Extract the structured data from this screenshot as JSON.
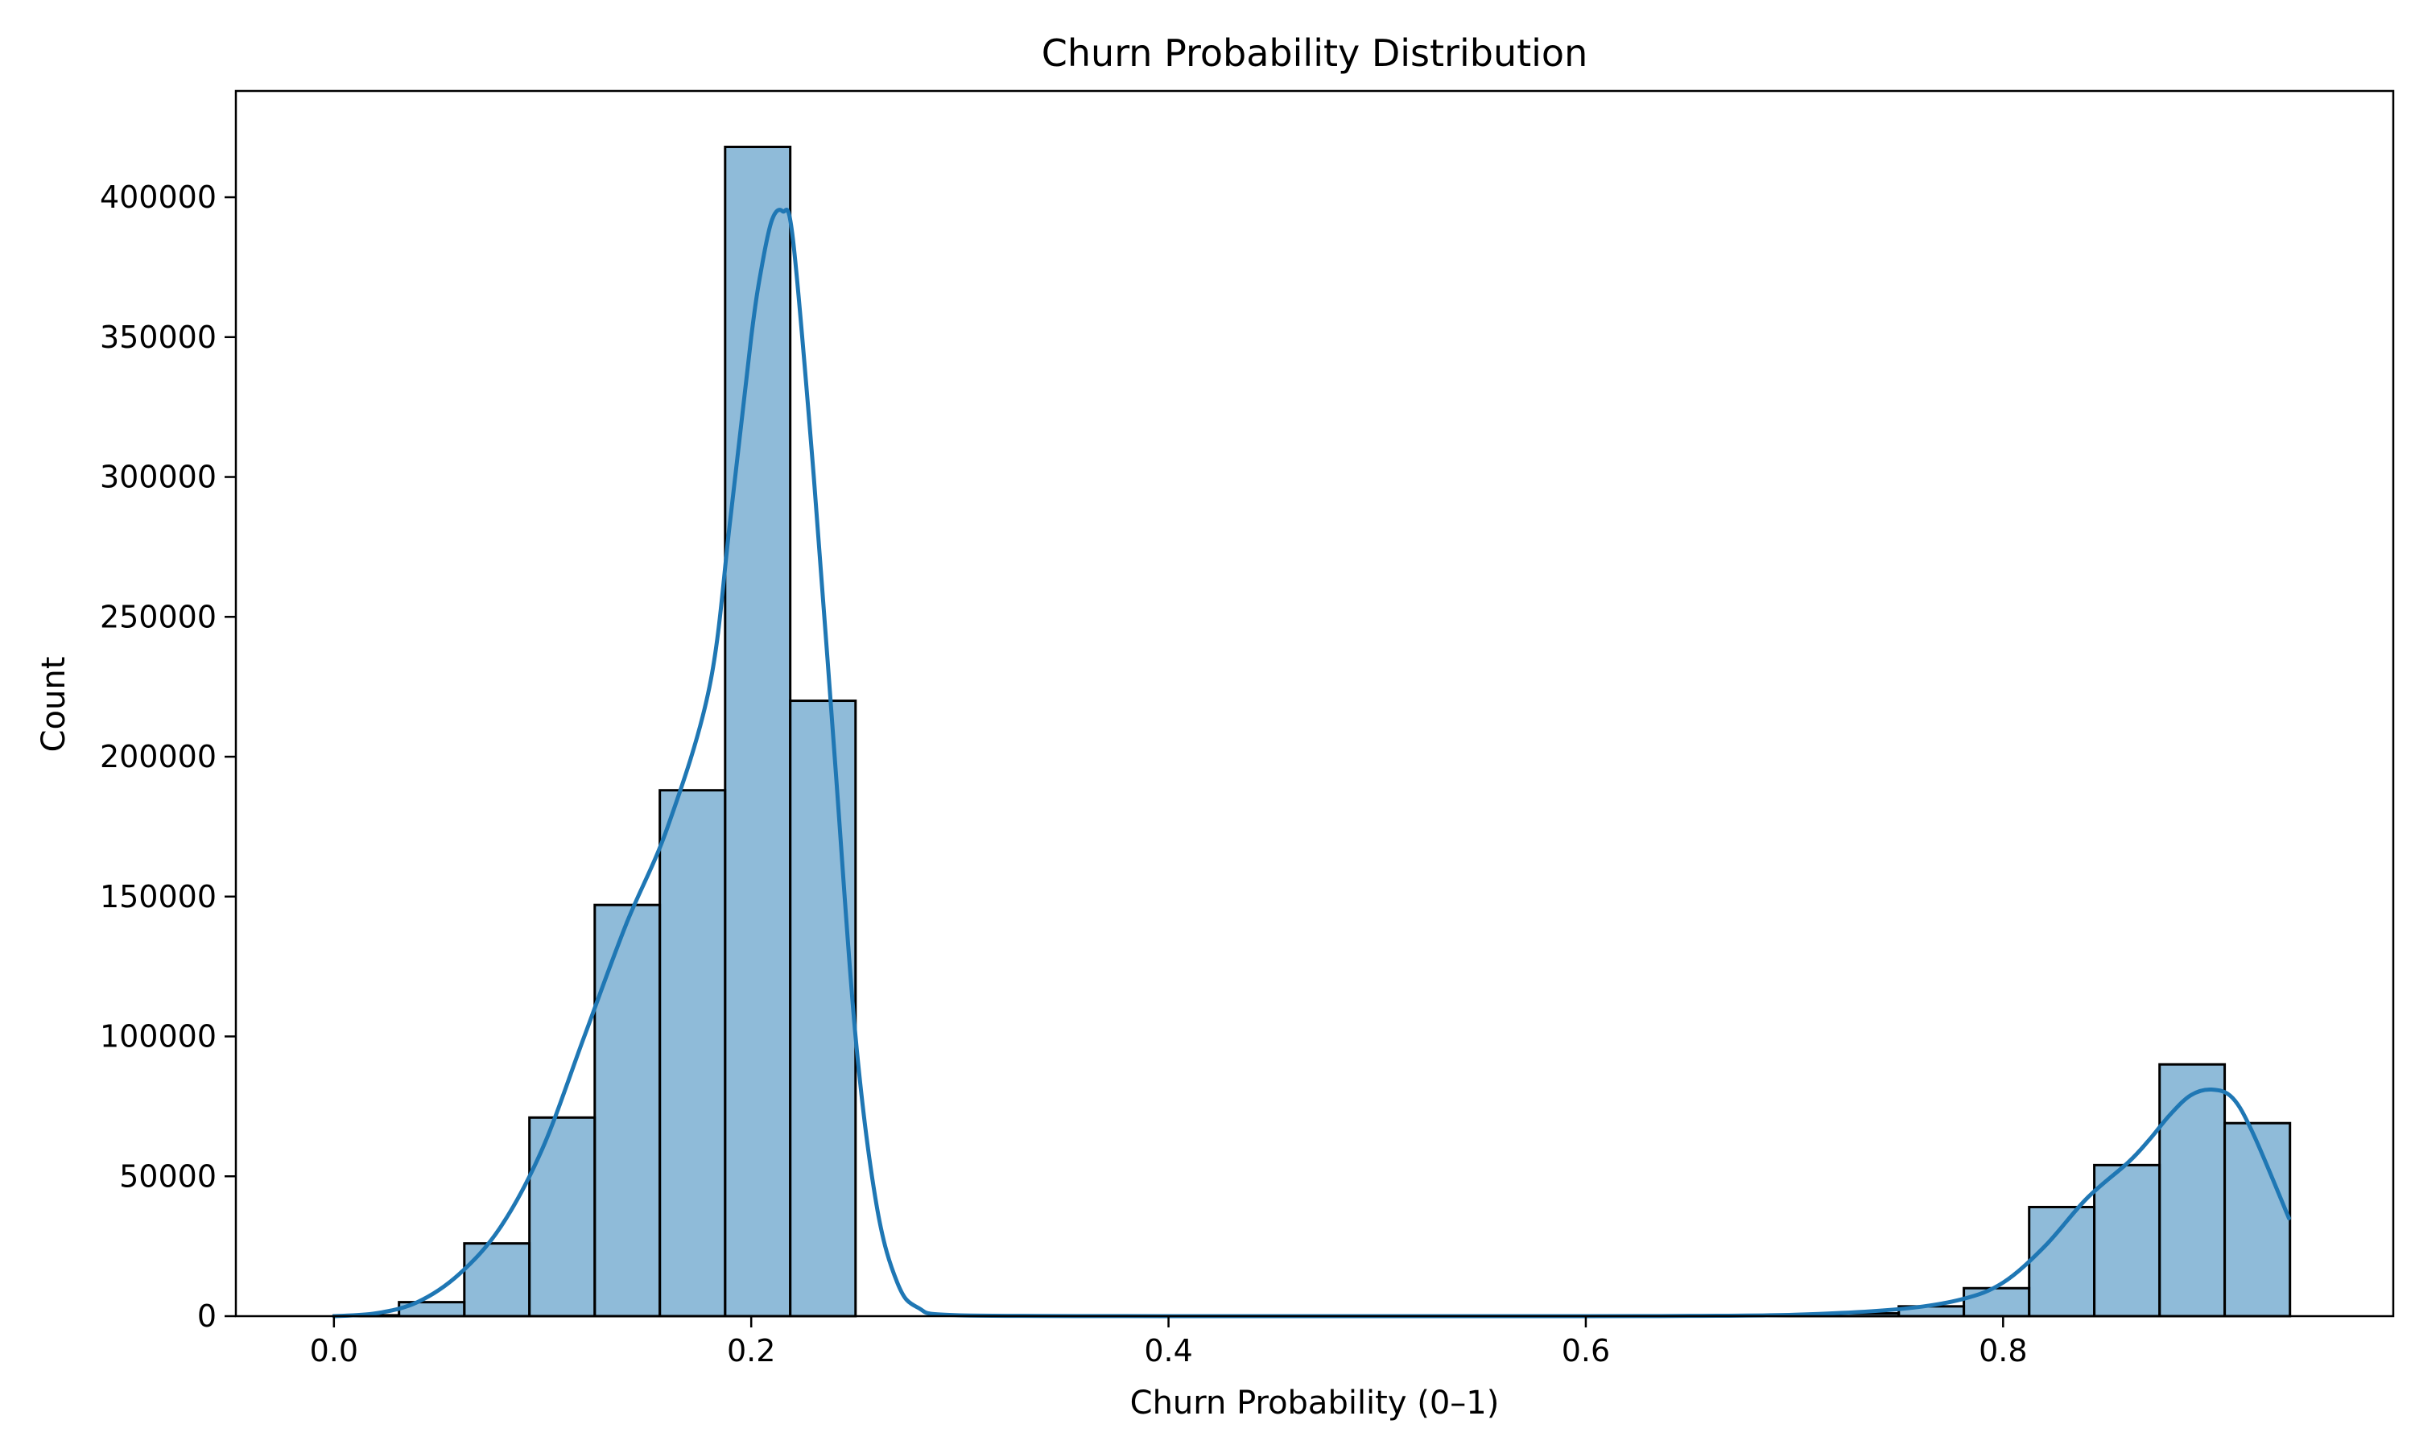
{
  "chart_data": {
    "type": "bar",
    "title": "Churn Probability Distribution",
    "xlabel": "Churn Probability (0–1)",
    "ylabel": "Count",
    "xlim": [
      -0.047,
      0.987
    ],
    "ylim": [
      0,
      438000
    ],
    "xticks": [
      0.0,
      0.2,
      0.4,
      0.6,
      0.8
    ],
    "xtick_labels": [
      "0.0",
      "0.2",
      "0.4",
      "0.6",
      "0.8"
    ],
    "yticks": [
      0,
      50000,
      100000,
      150000,
      200000,
      250000,
      300000,
      350000,
      400000
    ],
    "ytick_labels": [
      "0",
      "50000",
      "100000",
      "150000",
      "200000",
      "250000",
      "300000",
      "350000",
      "400000"
    ],
    "grid": false,
    "bar_color": "#1f77b4",
    "bar_alpha": 0.5,
    "bar_edge_color": "#000000",
    "kde_color": "#1f77b4",
    "bins": [
      {
        "x0": 0.0,
        "x1": 0.0312,
        "count": 300
      },
      {
        "x0": 0.0312,
        "x1": 0.0625,
        "count": 5000
      },
      {
        "x0": 0.0625,
        "x1": 0.0937,
        "count": 26000
      },
      {
        "x0": 0.0937,
        "x1": 0.125,
        "count": 71000
      },
      {
        "x0": 0.125,
        "x1": 0.1562,
        "count": 147000
      },
      {
        "x0": 0.1562,
        "x1": 0.1875,
        "count": 188000
      },
      {
        "x0": 0.1875,
        "x1": 0.2187,
        "count": 418000
      },
      {
        "x0": 0.2187,
        "x1": 0.25,
        "count": 220000
      },
      {
        "x0": 0.25,
        "x1": 0.2812,
        "count": 0
      },
      {
        "x0": 0.2812,
        "x1": 0.3125,
        "count": 0
      },
      {
        "x0": 0.3125,
        "x1": 0.3437,
        "count": 0
      },
      {
        "x0": 0.3437,
        "x1": 0.375,
        "count": 0
      },
      {
        "x0": 0.375,
        "x1": 0.4062,
        "count": 0
      },
      {
        "x0": 0.4062,
        "x1": 0.4375,
        "count": 0
      },
      {
        "x0": 0.4375,
        "x1": 0.4687,
        "count": 0
      },
      {
        "x0": 0.4687,
        "x1": 0.5,
        "count": 0
      },
      {
        "x0": 0.5,
        "x1": 0.5312,
        "count": 0
      },
      {
        "x0": 0.5312,
        "x1": 0.5625,
        "count": 0
      },
      {
        "x0": 0.5625,
        "x1": 0.5937,
        "count": 0
      },
      {
        "x0": 0.5937,
        "x1": 0.625,
        "count": 0
      },
      {
        "x0": 0.625,
        "x1": 0.6562,
        "count": 0
      },
      {
        "x0": 0.6562,
        "x1": 0.6875,
        "count": 0
      },
      {
        "x0": 0.6875,
        "x1": 0.7187,
        "count": 300
      },
      {
        "x0": 0.7187,
        "x1": 0.75,
        "count": 1000
      },
      {
        "x0": 0.75,
        "x1": 0.7812,
        "count": 3500
      },
      {
        "x0": 0.7812,
        "x1": 0.8125,
        "count": 10000
      },
      {
        "x0": 0.8125,
        "x1": 0.8437,
        "count": 39000
      },
      {
        "x0": 0.8437,
        "x1": 0.875,
        "count": 54000
      },
      {
        "x0": 0.875,
        "x1": 0.9062,
        "count": 90000
      },
      {
        "x0": 0.9062,
        "x1": 0.9375,
        "count": 69000
      }
    ],
    "kde": {
      "x": [
        0.0,
        0.02,
        0.04,
        0.06,
        0.08,
        0.1,
        0.12,
        0.14,
        0.16,
        0.18,
        0.19,
        0.2,
        0.205,
        0.21,
        0.215,
        0.22,
        0.23,
        0.24,
        0.25,
        0.26,
        0.27,
        0.28,
        0.3,
        0.4,
        0.5,
        0.6,
        0.65,
        0.7,
        0.75,
        0.78,
        0.8,
        0.82,
        0.84,
        0.86,
        0.87,
        0.88,
        0.89,
        0.9,
        0.91,
        0.92,
        0.937
      ],
      "y": [
        0,
        1000,
        5000,
        15000,
        32000,
        60000,
        100000,
        140000,
        175000,
        225000,
        285000,
        350000,
        375000,
        392000,
        395000,
        385000,
        300000,
        200000,
        100000,
        40000,
        12000,
        3000,
        300,
        0,
        0,
        0,
        100,
        500,
        2500,
        6000,
        12000,
        25000,
        42000,
        55000,
        63000,
        72000,
        79000,
        81000,
        78000,
        65000,
        35000
      ]
    }
  }
}
